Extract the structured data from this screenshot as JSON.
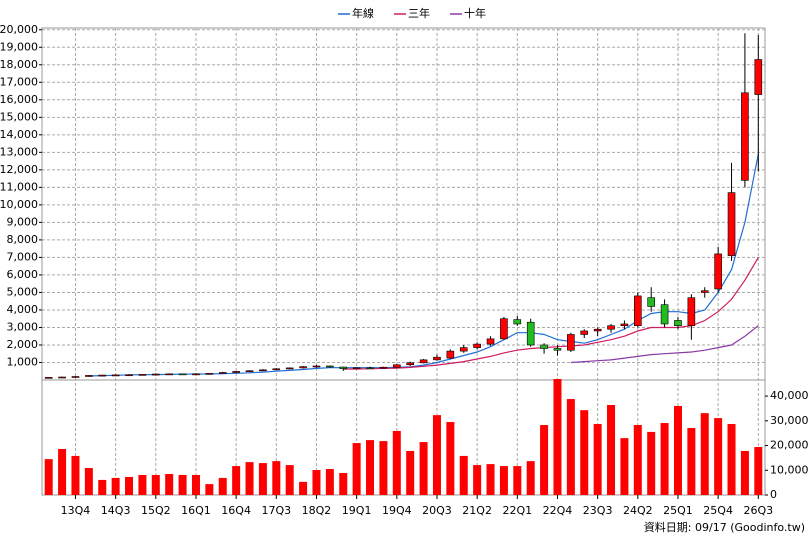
{
  "chart_data": [
    {
      "type": "candlestick",
      "up_color": "#ff0000",
      "down_color": "#22bb22",
      "open": [
        140,
        150,
        170,
        200,
        260,
        280,
        290,
        300,
        320,
        340,
        350,
        340,
        350,
        380,
        430,
        490,
        530,
        580,
        640,
        690,
        760,
        800,
        740,
        650,
        700,
        690,
        730,
        870,
        980,
        1150,
        1250,
        1650,
        1850,
        2050,
        2350,
        3450,
        3300,
        2000,
        1800,
        1700,
        2600,
        2800,
        2900,
        3100,
        3100,
        4700,
        4300,
        3400,
        3100,
        5000,
        5200,
        7100,
        11400,
        16300
      ],
      "high": [
        170,
        190,
        220,
        280,
        300,
        320,
        330,
        340,
        370,
        380,
        370,
        380,
        400,
        460,
        520,
        560,
        620,
        680,
        720,
        800,
        850,
        830,
        760,
        720,
        760,
        760,
        900,
        1050,
        1200,
        1450,
        1750,
        2000,
        2150,
        2500,
        3600,
        3650,
        3500,
        2100,
        2000,
        2700,
        2900,
        3000,
        3200,
        3400,
        5000,
        5300,
        4600,
        3600,
        4900,
        5300,
        7600,
        12400,
        19800,
        19700
      ],
      "low": [
        120,
        140,
        160,
        190,
        240,
        260,
        270,
        280,
        300,
        320,
        320,
        300,
        330,
        360,
        410,
        470,
        510,
        560,
        610,
        650,
        700,
        700,
        520,
        620,
        660,
        650,
        710,
        800,
        950,
        1100,
        1200,
        1550,
        1750,
        1950,
        2300,
        3100,
        1900,
        1500,
        1400,
        1600,
        2400,
        2500,
        2700,
        2900,
        3000,
        3900,
        3000,
        2900,
        2300,
        4700,
        5000,
        6800,
        11000,
        11900
      ],
      "close": [
        150,
        170,
        200,
        260,
        280,
        290,
        300,
        320,
        340,
        350,
        340,
        350,
        380,
        430,
        490,
        530,
        580,
        640,
        690,
        760,
        800,
        740,
        650,
        700,
        690,
        730,
        870,
        980,
        1150,
        1300,
        1650,
        1850,
        2050,
        2350,
        3500,
        3200,
        2000,
        1800,
        1700,
        2600,
        2800,
        2900,
        3100,
        3200,
        4800,
        4200,
        3200,
        3100,
        4700,
        5100,
        7200,
        10700,
        16400,
        18300
      ],
      "series": [
        {
          "name": "年線",
          "color": "#1f6fd6",
          "values": [
            null,
            null,
            null,
            230,
            250,
            270,
            290,
            300,
            310,
            320,
            330,
            340,
            345,
            360,
            380,
            410,
            450,
            500,
            550,
            600,
            660,
            700,
            700,
            700,
            700,
            700,
            720,
            750,
            850,
            1000,
            1200,
            1400,
            1600,
            1900,
            2300,
            2700,
            2700,
            2600,
            2300,
            2200,
            2100,
            2300,
            2600,
            2900,
            3400,
            3800,
            3900,
            3900,
            3800,
            4000,
            5000,
            6300,
            9000,
            12900
          ]
        },
        {
          "name": "三年",
          "color": "#d01c62",
          "values": [
            null,
            null,
            null,
            null,
            null,
            null,
            null,
            null,
            null,
            null,
            null,
            null,
            null,
            null,
            null,
            null,
            null,
            null,
            null,
            null,
            null,
            null,
            620,
            630,
            640,
            660,
            680,
            720,
            780,
            850,
            950,
            1050,
            1200,
            1350,
            1550,
            1700,
            1800,
            1850,
            1900,
            1950,
            2000,
            2150,
            2300,
            2500,
            2800,
            3000,
            3000,
            3000,
            3100,
            3400,
            3900,
            4600,
            5700,
            7000
          ]
        },
        {
          "name": "十年",
          "color": "#8a3aa8",
          "values": [
            null,
            null,
            null,
            null,
            null,
            null,
            null,
            null,
            null,
            null,
            null,
            null,
            null,
            null,
            null,
            null,
            null,
            null,
            null,
            null,
            null,
            null,
            null,
            null,
            null,
            null,
            null,
            null,
            null,
            null,
            null,
            null,
            null,
            null,
            null,
            null,
            null,
            null,
            null,
            1000,
            1050,
            1100,
            1150,
            1250,
            1350,
            1450,
            1500,
            1550,
            1600,
            1700,
            1850,
            2000,
            2500,
            3100
          ]
        }
      ],
      "ylim": [
        0,
        20100
      ],
      "yticks": [
        {
          "value": 1000,
          "label": "1,000"
        },
        {
          "value": 2000,
          "label": "2,000"
        },
        {
          "value": 3000,
          "label": "3,000"
        },
        {
          "value": 4000,
          "label": "4,000"
        },
        {
          "value": 5000,
          "label": "5,000"
        },
        {
          "value": 6000,
          "label": "6,000"
        },
        {
          "value": 7000,
          "label": "7,000"
        },
        {
          "value": 8000,
          "label": "8,000"
        },
        {
          "value": 9000,
          "label": "9,000"
        },
        {
          "value": 10000,
          "label": "10,000"
        },
        {
          "value": 11000,
          "label": "11,000"
        },
        {
          "value": 12000,
          "label": "12,000"
        },
        {
          "value": 13000,
          "label": "13,000"
        },
        {
          "value": 14000,
          "label": "14,000"
        },
        {
          "value": 15000,
          "label": "15,000"
        },
        {
          "value": 16000,
          "label": "16,000"
        },
        {
          "value": 17000,
          "label": "17,000"
        },
        {
          "value": 18000,
          "label": "18,000"
        },
        {
          "value": 19000,
          "label": "19,000"
        },
        {
          "value": 20000,
          "label": "20,000"
        }
      ],
      "grid": true,
      "legend": "top"
    },
    {
      "type": "bar",
      "color": "#ff0000",
      "categories": [
        null,
        null,
        "13Q4",
        null,
        null,
        "14Q3",
        null,
        null,
        "15Q2",
        null,
        null,
        "16Q1",
        null,
        null,
        "16Q4",
        null,
        null,
        "17Q3",
        null,
        null,
        "18Q2",
        null,
        null,
        "19Q1",
        null,
        null,
        "19Q4",
        null,
        null,
        "20Q3",
        null,
        null,
        "21Q2",
        null,
        null,
        "22Q1",
        null,
        null,
        "22Q4",
        null,
        null,
        "23Q3",
        null,
        null,
        "24Q2",
        null,
        null,
        "25Q1",
        null,
        null,
        "25Q4",
        null,
        null,
        "26Q3"
      ],
      "values": [
        14500,
        18600,
        15800,
        10900,
        6100,
        6900,
        7300,
        8100,
        8100,
        8500,
        8100,
        8100,
        4400,
        6900,
        11700,
        13300,
        12900,
        13700,
        12100,
        5300,
        10100,
        10500,
        8900,
        21000,
        22200,
        21800,
        25900,
        17800,
        21400,
        32300,
        29500,
        15800,
        12100,
        12500,
        11700,
        11700,
        13700,
        28300,
        46900,
        38800,
        34300,
        28700,
        36400,
        23000,
        28300,
        25500,
        29100,
        36000,
        27100,
        33100,
        31100,
        28700,
        17800,
        19400
      ],
      "ylim": [
        0,
        46500
      ],
      "yticks": [
        0,
        {
          "value": 10000,
          "label": "10,000"
        },
        {
          "value": 20000,
          "label": "20,000"
        },
        {
          "value": 30000,
          "label": "30,000"
        },
        {
          "value": 40000,
          "label": "40,000"
        }
      ],
      "annotation": "資料日期: 09/17 (Goodinfo.tw)"
    }
  ]
}
